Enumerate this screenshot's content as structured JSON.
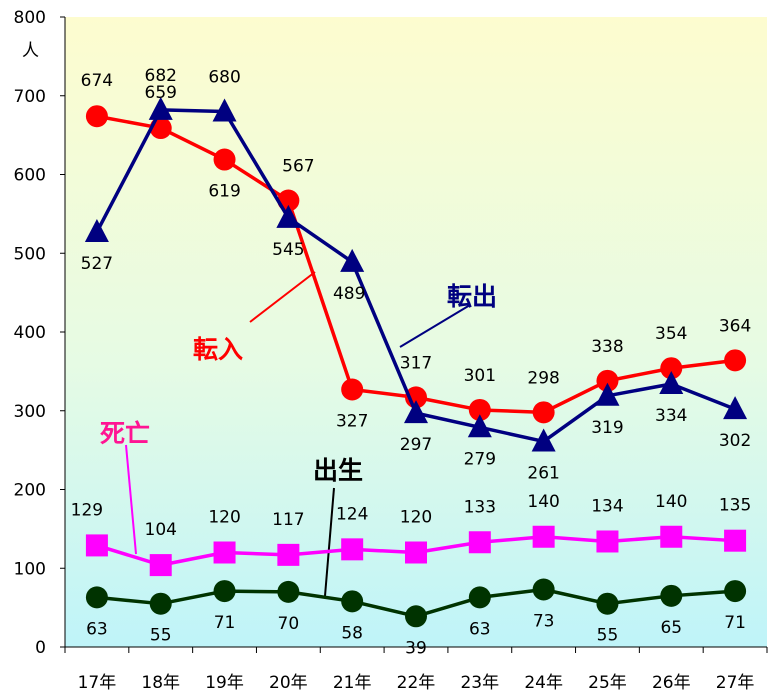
{
  "chart_data": {
    "type": "line",
    "y_unit": "人",
    "categories": [
      "17年",
      "18年",
      "19年",
      "20年",
      "21年",
      "22年",
      "23年",
      "24年",
      "25年",
      "26年",
      "27年"
    ],
    "ylim": [
      0,
      800
    ],
    "yticks": [
      0,
      100,
      200,
      300,
      400,
      500,
      600,
      700,
      800
    ],
    "grid": false,
    "series": [
      {
        "name": "転入",
        "color": "#ff0000",
        "marker": "circle",
        "values": [
          674,
          659,
          619,
          567,
          327,
          317,
          301,
          298,
          338,
          354,
          364
        ]
      },
      {
        "name": "転出",
        "color": "#000080",
        "marker": "triangle",
        "values": [
          527,
          682,
          680,
          545,
          489,
          297,
          279,
          261,
          319,
          334,
          302
        ]
      },
      {
        "name": "死亡",
        "color": "#ff00ff",
        "marker": "square",
        "values": [
          129,
          104,
          120,
          117,
          124,
          120,
          133,
          140,
          134,
          140,
          135
        ]
      },
      {
        "name": "出生",
        "color": "#003300",
        "marker": "circle",
        "values": [
          63,
          55,
          71,
          70,
          58,
          39,
          63,
          73,
          55,
          65,
          71
        ]
      }
    ]
  }
}
